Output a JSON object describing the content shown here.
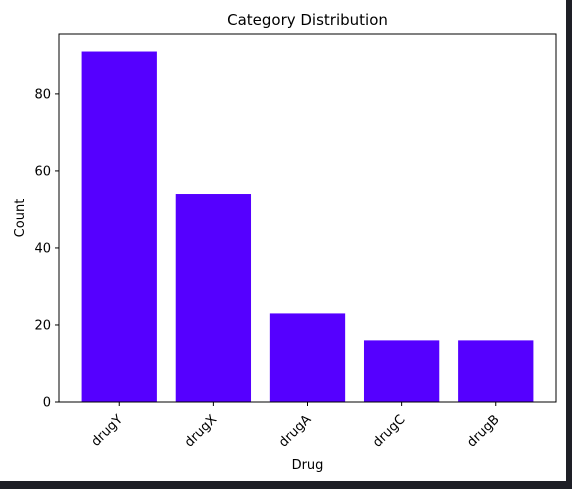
{
  "chart_data": {
    "type": "bar",
    "title": "Category Distribution",
    "xlabel": "Drug",
    "ylabel": "Count",
    "categories": [
      "drugY",
      "drugX",
      "drugA",
      "drugC",
      "drugB"
    ],
    "values": [
      91,
      54,
      23,
      16,
      16
    ],
    "ylim": [
      0,
      95.55
    ],
    "yticks": [
      0,
      20,
      40,
      60,
      80
    ],
    "bar_color": "#5500ff",
    "grid": false,
    "xtick_rotation": 45
  }
}
